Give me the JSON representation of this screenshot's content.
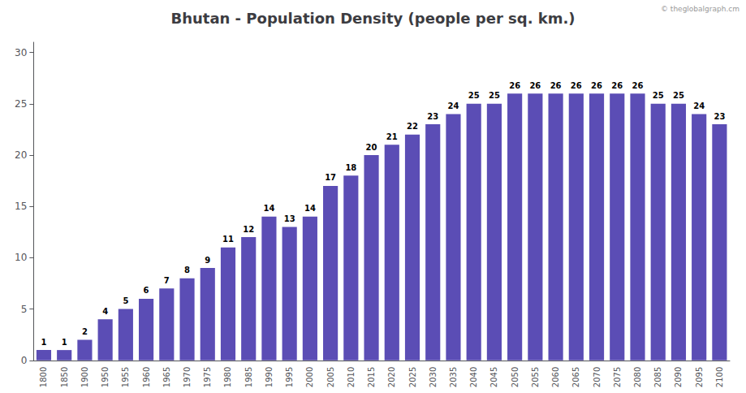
{
  "chart_data": {
    "type": "bar",
    "title": "Bhutan - Population Density (people per sq. km.)",
    "categories": [
      1800,
      1850,
      1900,
      1950,
      1955,
      1960,
      1965,
      1970,
      1975,
      1980,
      1985,
      1990,
      1995,
      2000,
      2005,
      2010,
      2015,
      2020,
      2025,
      2030,
      2035,
      2040,
      2045,
      2050,
      2055,
      2060,
      2065,
      2070,
      2075,
      2080,
      2085,
      2090,
      2095,
      2100
    ],
    "values": [
      1,
      1,
      2,
      4,
      5,
      6,
      7,
      8,
      9,
      11,
      12,
      14,
      13,
      14,
      17,
      18,
      20,
      21,
      22,
      23,
      24,
      25,
      25,
      26,
      26,
      26,
      26,
      26,
      26,
      26,
      25,
      25,
      24,
      23
    ],
    "color": "#5b4db5",
    "ylim": [
      0,
      31
    ],
    "yticks": [
      0,
      5,
      10,
      15,
      20,
      25,
      30
    ],
    "grid": false,
    "data_labels": true,
    "annotations": [
      "© theglobalgraph.cm"
    ]
  }
}
